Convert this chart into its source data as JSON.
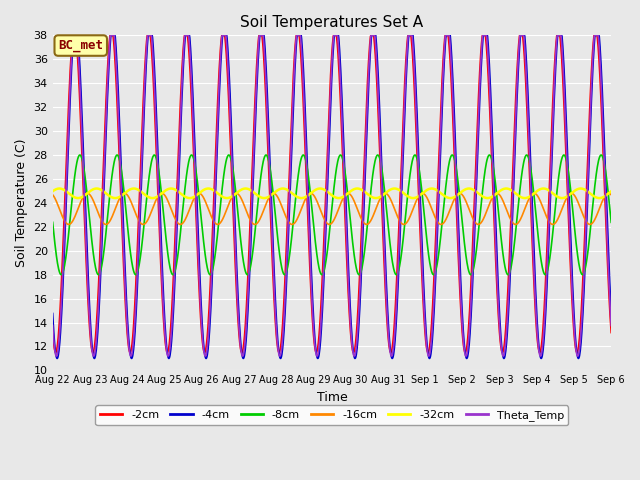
{
  "title": "Soil Temperatures Set A",
  "xlabel": "Time",
  "ylabel": "Soil Temperature (C)",
  "ylim": [
    10,
    38
  ],
  "yticks": [
    10,
    12,
    14,
    16,
    18,
    20,
    22,
    24,
    26,
    28,
    30,
    32,
    34,
    36,
    38
  ],
  "annotation_text": "BC_met",
  "annotation_color": "#8B0000",
  "annotation_bg": "#FFFFAA",
  "series": {
    "-2cm": {
      "color": "#FF0000",
      "lw": 1.2
    },
    "-4cm": {
      "color": "#0000CC",
      "lw": 1.2
    },
    "-8cm": {
      "color": "#00CC00",
      "lw": 1.2
    },
    "-16cm": {
      "color": "#FF8800",
      "lw": 1.2
    },
    "-32cm": {
      "color": "#FFFF00",
      "lw": 1.8
    },
    "Theta_Temp": {
      "color": "#9933CC",
      "lw": 1.2
    }
  },
  "n_days": 15,
  "n_points": 1500,
  "bg_color": "#E8E8E8",
  "x_tick_labels": [
    "Aug 22",
    "Aug 23",
    "Aug 24",
    "Aug 25",
    "Aug 26",
    "Aug 27",
    "Aug 28",
    "Aug 29",
    "Aug 30",
    "Aug 31",
    "Sep 1",
    "Sep 2",
    "Sep 3",
    "Sep 4",
    "Sep 5",
    "Sep 6"
  ]
}
